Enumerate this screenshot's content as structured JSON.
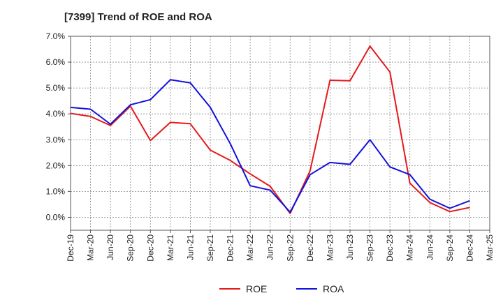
{
  "chart_data": {
    "type": "line",
    "title": "[7399]  Trend of ROE and ROA",
    "xlabel": "",
    "ylabel": "",
    "categories": [
      "Dec-19",
      "Mar-20",
      "Jun-20",
      "Sep-20",
      "Dec-20",
      "Mar-21",
      "Jun-21",
      "Sep-21",
      "Dec-21",
      "Mar-22",
      "Jun-22",
      "Sep-22",
      "Dec-22",
      "Mar-23",
      "Jun-23",
      "Sep-23",
      "Dec-23",
      "Mar-24",
      "Jun-24",
      "Sep-24",
      "Dec-24",
      "Mar-25"
    ],
    "ylim": [
      -0.5,
      7.0
    ],
    "yticks": [
      0.0,
      1.0,
      2.0,
      3.0,
      4.0,
      5.0,
      6.0,
      7.0
    ],
    "ytick_labels": [
      "0.0%",
      "1.0%",
      "2.0%",
      "3.0%",
      "4.0%",
      "5.0%",
      "6.0%",
      "7.0%"
    ],
    "grid": true,
    "legend_position": "bottom-center",
    "series": [
      {
        "name": "ROE",
        "color": "#e41a1c",
        "values": [
          4.02,
          3.9,
          3.55,
          4.3,
          2.97,
          3.67,
          3.62,
          2.6,
          2.2,
          1.68,
          1.2,
          0.15,
          1.8,
          5.3,
          5.28,
          6.62,
          5.62,
          1.32,
          0.57,
          0.22,
          0.38,
          null
        ]
      },
      {
        "name": "ROA",
        "color": "#1111dd",
        "values": [
          4.25,
          4.18,
          3.6,
          4.35,
          4.55,
          5.32,
          5.2,
          4.25,
          2.85,
          1.22,
          1.05,
          0.2,
          1.65,
          2.12,
          2.05,
          3.0,
          1.95,
          1.65,
          0.7,
          0.35,
          0.64,
          null
        ]
      }
    ]
  }
}
